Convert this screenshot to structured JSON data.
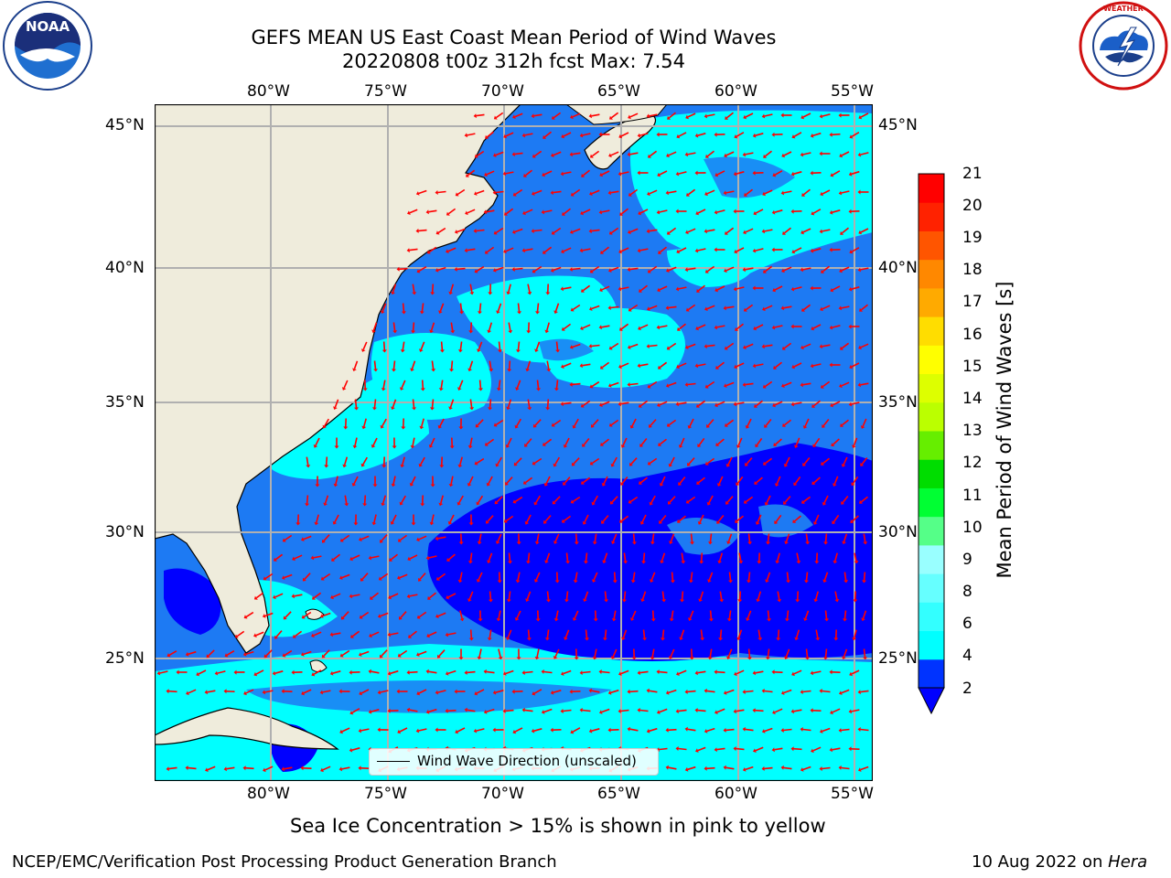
{
  "header": {
    "title_line1": "GEFS MEAN US East Coast Mean Period of Wind Waves",
    "title_line2": "20220808 t00z 312h fcst   Max: 7.54"
  },
  "logos": {
    "left": "NOAA",
    "left_ring": "NATIONAL OCEANIC AND ATMOSPHERIC ADMINISTRATION · U.S. DEPARTMENT OF COMMERCE",
    "right_ring": "NATIONAL WEATHER SERVICE"
  },
  "map": {
    "lon_labels": [
      "80°W",
      "75°W",
      "70°W",
      "65°W",
      "60°W",
      "55°W"
    ],
    "lat_labels": [
      "45°N",
      "40°N",
      "35°N",
      "30°N",
      "25°N"
    ],
    "legend_label": "Wind Wave Direction (unscaled)",
    "land_color": "#efecdc",
    "arrow_color": "#ff0000"
  },
  "colorbar": {
    "label": "Mean Period of Wind Waves [s]",
    "ticks": [
      "21",
      "20",
      "19",
      "18",
      "17",
      "16",
      "15",
      "14",
      "13",
      "12",
      "11",
      "10",
      "9",
      "8",
      "6",
      "4",
      "2"
    ],
    "colors_bottom_to_top": [
      "#0033ff",
      "#00ffff",
      "#33ffff",
      "#66ffff",
      "#99ffff",
      "#55ff88",
      "#00ff33",
      "#00dd00",
      "#66ee00",
      "#bbff00",
      "#ddff00",
      "#ffff00",
      "#ffdd00",
      "#ffaa00",
      "#ff8800",
      "#ff5500",
      "#ff2200",
      "#ff0000"
    ],
    "under_color": "#0000ff"
  },
  "sea_ice_note": "Sea Ice Concentration > 15% is shown in pink to yellow",
  "footer": {
    "left": "NCEP/EMC/Verification Post Processing Product Generation Branch",
    "right_prefix": "10 Aug 2022 on ",
    "right_host": "Hera"
  }
}
